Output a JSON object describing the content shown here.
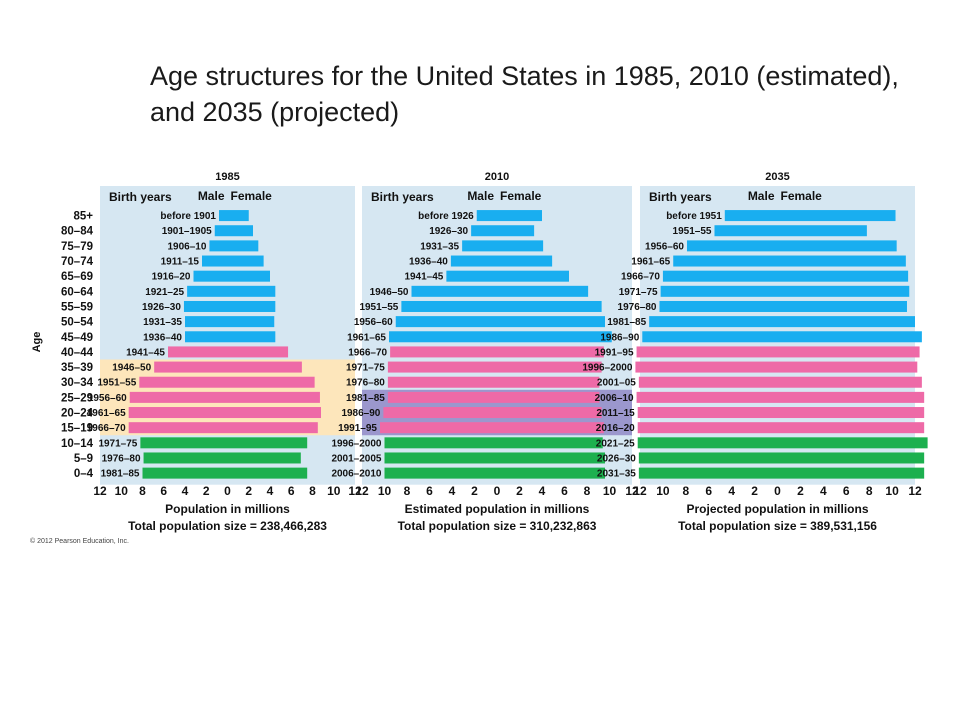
{
  "title": "Age structures for the United States in 1985, 2010 (estimated), and 2035 (projected)",
  "copyright": "© 2012 Pearson Education, Inc.",
  "colors": {
    "male": "#19aef0",
    "female": "#19aef0",
    "prereproductive": "#1db04f",
    "reproductive": "#ee6aa7",
    "postreproductive": "#19aef0",
    "panel_background": "#d6e7f2",
    "baby_boom_1985": "#fde6bb",
    "baby_boom_2010": "#9b97cd"
  },
  "y_axis_label": "Age",
  "age_groups": [
    "85+",
    "80–84",
    "75–79",
    "70–74",
    "65–69",
    "60–64",
    "55–59",
    "50–54",
    "45–49",
    "40–44",
    "35–39",
    "30–34",
    "25–29",
    "20–24",
    "15–19",
    "10–14",
    "5–9",
    "0–4"
  ],
  "x_ticks": [
    "12",
    "10",
    "8",
    "6",
    "4",
    "2",
    "0",
    "2",
    "4",
    "6",
    "8",
    "10",
    "12"
  ],
  "chart_data": [
    {
      "type": "bar",
      "orientation": "horizontal",
      "title": "1985",
      "birth_years_header": "Birth years",
      "male_label": "Male",
      "female_label": "Female",
      "xlabel": "Population in millions",
      "total_label": "Total population size = 238,466,283",
      "xlim": [
        -12,
        12
      ],
      "highlight_rows": [
        10,
        14
      ],
      "birth_years": [
        "before 1901",
        "1901–1905",
        "1906–10",
        "1911–15",
        "1916–20",
        "1921–25",
        "1926–30",
        "1931–35",
        "1936–40",
        "1941–45",
        "1946–50",
        "1951–55",
        "1956–60",
        "1961–65",
        "1966–70",
        "1971–75",
        "1976–80",
        "1981–85"
      ],
      "male": [
        0.8,
        1.2,
        1.7,
        2.4,
        3.2,
        3.8,
        4.1,
        4.0,
        4.0,
        5.6,
        6.9,
        8.3,
        9.2,
        9.3,
        9.3,
        8.2,
        7.9,
        8.0
      ],
      "female": [
        2.0,
        2.4,
        2.9,
        3.4,
        4.0,
        4.5,
        4.5,
        4.4,
        4.5,
        5.7,
        7.0,
        8.2,
        8.7,
        8.8,
        8.5,
        7.5,
        6.9,
        7.5
      ],
      "phase": [
        "post",
        "post",
        "post",
        "post",
        "post",
        "post",
        "post",
        "post",
        "post",
        "repro",
        "repro",
        "repro",
        "repro",
        "repro",
        "repro",
        "pre",
        "pre",
        "pre"
      ]
    },
    {
      "type": "bar",
      "orientation": "horizontal",
      "title": "2010",
      "birth_years_header": "Birth years",
      "male_label": "Male",
      "female_label": "Female",
      "xlabel": "Estimated population in millions",
      "total_label": "Total population size = 310,232,863",
      "xlim": [
        -12,
        12
      ],
      "highlight_rows": [
        12,
        14
      ],
      "birth_years": [
        "before 1926",
        "1926–30",
        "1931–35",
        "1936–40",
        "1941–45",
        "1946–50",
        "1951–55",
        "1956–60",
        "1961–65",
        "1966–70",
        "1971–75",
        "1976–80",
        "1981–85",
        "1986–90",
        "1991–95",
        "1996–2000",
        "2001–2005",
        "2006–2010"
      ],
      "male": [
        1.8,
        2.3,
        3.1,
        4.1,
        4.5,
        7.6,
        8.5,
        9.0,
        9.6,
        9.5,
        9.7,
        9.7,
        9.7,
        10.1,
        10.4,
        10.0,
        10.0,
        10.0
      ],
      "female": [
        4.0,
        3.3,
        4.1,
        4.9,
        6.4,
        8.1,
        9.3,
        9.6,
        10.2,
        9.5,
        9.3,
        9.1,
        9.1,
        9.3,
        9.5,
        9.4,
        9.6,
        9.6
      ],
      "phase": [
        "post",
        "post",
        "post",
        "post",
        "post",
        "post",
        "post",
        "post",
        "post",
        "repro",
        "repro",
        "repro",
        "repro",
        "repro",
        "repro",
        "pre",
        "pre",
        "pre"
      ]
    },
    {
      "type": "bar",
      "orientation": "horizontal",
      "title": "2035",
      "birth_years_header": "Birth years",
      "male_label": "Male",
      "female_label": "Female",
      "xlabel": "Projected population in millions",
      "total_label": "Total population size = 389,531,156",
      "xlim": [
        -12,
        12
      ],
      "highlight_rows": [],
      "birth_years": [
        "before 1951",
        "1951–55",
        "1956–60",
        "1961–65",
        "1966–70",
        "1971–75",
        "1976–80",
        "1981–85",
        "1986–90",
        "1991–95",
        "1996–2000",
        "2001–05",
        "2006–10",
        "2011–15",
        "2016–20",
        "2021–25",
        "2026–30",
        "2031–35"
      ],
      "male": [
        4.6,
        5.5,
        7.9,
        9.1,
        10.0,
        10.2,
        10.3,
        11.2,
        11.8,
        12.3,
        12.4,
        12.1,
        12.3,
        12.2,
        12.2,
        12.2,
        12.1,
        12.1
      ],
      "female": [
        10.3,
        7.8,
        10.4,
        11.2,
        11.4,
        11.5,
        11.3,
        12.0,
        12.6,
        12.4,
        12.2,
        12.6,
        12.8,
        12.8,
        12.8,
        13.1,
        12.8,
        12.8
      ],
      "phase": [
        "post",
        "post",
        "post",
        "post",
        "post",
        "post",
        "post",
        "post",
        "post",
        "repro",
        "repro",
        "repro",
        "repro",
        "repro",
        "repro",
        "pre",
        "pre",
        "pre"
      ]
    }
  ]
}
